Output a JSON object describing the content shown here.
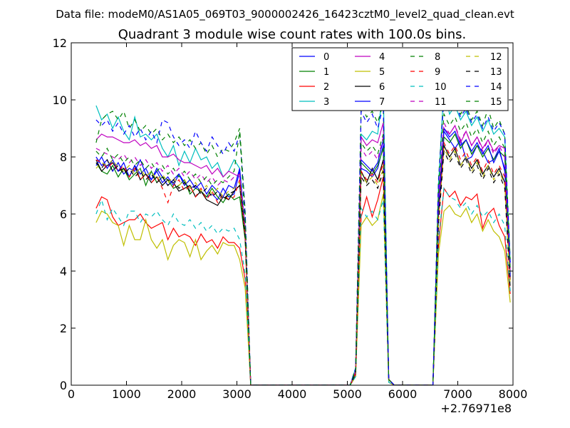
{
  "figure": {
    "suptitle": "Data file: modeM0/AS1A05_069T03_9000002426_16423cztM0_level2_quad_clean.evt"
  },
  "chart_data": {
    "type": "line",
    "title": "Quadrant 3 module wise count rates with 100.0s bins.",
    "xlabel": "",
    "ylabel": "",
    "xlim": [
      0,
      8000
    ],
    "ylim": [
      0,
      12
    ],
    "x_offset_label": "+2.76971e8",
    "x_ticks": [
      0,
      1000,
      2000,
      3000,
      4000,
      5000,
      6000,
      7000,
      8000
    ],
    "y_ticks": [
      0,
      2,
      4,
      6,
      8,
      10,
      12
    ],
    "legend_location": "top-right",
    "legend_columns": 4,
    "x": [
      450,
      550,
      650,
      750,
      850,
      950,
      1050,
      1150,
      1250,
      1350,
      1450,
      1550,
      1650,
      1750,
      1850,
      1950,
      2050,
      2150,
      2250,
      2350,
      2450,
      2550,
      2650,
      2750,
      2850,
      2950,
      3050,
      3150,
      3250,
      3350,
      4550,
      5050,
      5150,
      5250,
      5350,
      5450,
      5550,
      5650,
      5750,
      5850,
      6450,
      6550,
      6650,
      6750,
      6850,
      6950,
      7050,
      7150,
      7250,
      7350,
      7450,
      7550,
      7650,
      7750,
      7850,
      7950
    ],
    "series": [
      {
        "name": "0",
        "color": "#0000ff",
        "dash": "solid",
        "values": [
          8.0,
          7.7,
          7.9,
          7.5,
          7.8,
          7.4,
          7.6,
          7.5,
          7.9,
          7.4,
          7.2,
          7.6,
          7.3,
          7.0,
          7.2,
          7.4,
          7.1,
          6.9,
          7.0,
          6.8,
          6.6,
          6.7,
          6.5,
          6.9,
          6.6,
          6.7,
          7.5,
          5.3,
          0,
          0,
          0,
          0,
          0.4,
          7.6,
          7.5,
          7.3,
          7.6,
          8.4,
          0.2,
          0,
          0,
          0,
          6.0,
          8.9,
          8.6,
          8.3,
          8.6,
          7.9,
          8.0,
          8.4,
          8.2,
          7.8,
          7.9,
          8.3,
          7.5,
          3.9
        ]
      },
      {
        "name": "1",
        "color": "#008000",
        "dash": "solid",
        "values": [
          7.8,
          7.5,
          7.4,
          7.7,
          7.3,
          7.6,
          7.2,
          7.4,
          7.6,
          7.0,
          7.5,
          7.1,
          7.3,
          7.2,
          6.9,
          7.0,
          7.2,
          6.7,
          6.9,
          6.8,
          6.6,
          6.9,
          6.6,
          6.4,
          6.7,
          6.5,
          6.6,
          5.1,
          0,
          0,
          0,
          0,
          0.5,
          7.8,
          7.6,
          7.4,
          7.7,
          8.3,
          0.2,
          0,
          0,
          0,
          6.2,
          8.7,
          8.5,
          8.8,
          8.3,
          8.6,
          8.1,
          8.4,
          8.0,
          8.3,
          7.9,
          8.2,
          8.0,
          3.8
        ]
      },
      {
        "name": "2",
        "color": "#ff0000",
        "dash": "solid",
        "values": [
          6.2,
          6.6,
          6.5,
          5.9,
          5.6,
          5.7,
          5.8,
          5.8,
          6.0,
          5.7,
          5.5,
          5.6,
          5.7,
          5.1,
          5.5,
          5.2,
          5.3,
          5.2,
          4.9,
          5.3,
          5.0,
          5.1,
          4.8,
          5.2,
          5.0,
          5.0,
          4.8,
          3.7,
          0,
          0,
          0,
          0,
          0.3,
          5.9,
          6.6,
          5.9,
          6.5,
          7.3,
          0.1,
          0,
          0,
          0,
          4.9,
          6.9,
          6.6,
          6.8,
          6.3,
          6.6,
          6.5,
          6.7,
          5.5,
          6.0,
          6.2,
          5.6,
          5.2,
          3.2
        ]
      },
      {
        "name": "3",
        "color": "#00bfbf",
        "dash": "solid",
        "values": [
          9.8,
          9.3,
          9.5,
          9.0,
          9.4,
          8.9,
          8.6,
          9.4,
          8.7,
          8.8,
          8.6,
          8.8,
          8.3,
          8.0,
          8.4,
          7.7,
          8.2,
          7.8,
          8.3,
          7.9,
          8.0,
          7.6,
          7.8,
          7.3,
          7.5,
          7.9,
          7.6,
          5.5,
          0,
          0,
          0,
          0,
          0.6,
          8.8,
          8.6,
          8.9,
          8.8,
          10.4,
          0.2,
          0,
          0,
          0,
          7.0,
          10.5,
          9.5,
          9.8,
          9.3,
          9.6,
          9.1,
          9.4,
          8.9,
          9.3,
          8.8,
          9.0,
          8.7,
          4.3
        ]
      },
      {
        "name": "4",
        "color": "#bf00bf",
        "dash": "solid",
        "values": [
          8.6,
          8.8,
          8.7,
          8.7,
          8.6,
          8.5,
          8.5,
          8.6,
          8.4,
          8.5,
          8.3,
          8.4,
          8.0,
          8.0,
          8.1,
          7.9,
          7.8,
          7.8,
          7.7,
          7.6,
          7.7,
          7.4,
          7.6,
          7.3,
          7.5,
          7.4,
          7.3,
          5.4,
          0,
          0,
          0,
          0,
          0.5,
          8.7,
          8.4,
          8.6,
          8.5,
          9.2,
          0.2,
          0,
          0,
          0,
          6.6,
          9.0,
          8.8,
          9.1,
          8.5,
          8.9,
          8.4,
          8.7,
          8.3,
          8.6,
          8.2,
          8.4,
          8.3,
          4.1
        ]
      },
      {
        "name": "5",
        "color": "#bfbf00",
        "dash": "solid",
        "values": [
          5.7,
          6.1,
          6.0,
          5.7,
          5.6,
          4.9,
          5.6,
          5.1,
          5.1,
          5.8,
          5.1,
          4.8,
          5.1,
          4.4,
          4.9,
          5.1,
          5.0,
          4.5,
          5.1,
          4.4,
          4.7,
          4.9,
          4.6,
          5.0,
          4.9,
          4.9,
          4.4,
          3.4,
          0,
          0,
          0,
          0,
          0.3,
          5.6,
          5.9,
          5.6,
          5.8,
          6.7,
          0.1,
          0,
          0,
          0,
          4.6,
          6.1,
          6.3,
          6.0,
          5.9,
          6.2,
          5.7,
          6.0,
          5.4,
          5.8,
          5.4,
          5.2,
          4.7,
          2.9
        ]
      },
      {
        "name": "6",
        "color": "#000000",
        "dash": "solid",
        "values": [
          7.9,
          7.5,
          7.7,
          7.8,
          7.5,
          7.6,
          7.3,
          7.7,
          7.2,
          7.4,
          7.1,
          7.3,
          7.0,
          7.2,
          7.1,
          6.8,
          6.9,
          7.0,
          6.6,
          6.8,
          6.5,
          6.4,
          6.3,
          6.6,
          6.5,
          6.8,
          7.0,
          5.2,
          0,
          0,
          0,
          0,
          0.4,
          7.5,
          7.1,
          7.6,
          7.2,
          7.9,
          0.2,
          0,
          0,
          0,
          5.9,
          8.4,
          8.0,
          8.3,
          7.7,
          8.0,
          7.6,
          7.9,
          7.4,
          7.7,
          7.3,
          7.6,
          7.1,
          3.7
        ]
      },
      {
        "name": "7",
        "color": "#0000ff",
        "dash": "solid",
        "values": [
          7.7,
          8.0,
          7.6,
          7.9,
          7.5,
          7.8,
          7.3,
          7.7,
          7.4,
          7.6,
          7.2,
          7.5,
          7.1,
          7.3,
          7.0,
          7.4,
          7.0,
          7.2,
          6.9,
          7.1,
          6.7,
          7.0,
          6.8,
          6.6,
          7.0,
          6.9,
          7.6,
          5.4,
          0,
          0,
          0,
          0,
          0.4,
          7.9,
          7.7,
          7.5,
          7.8,
          8.6,
          0.2,
          0,
          0,
          0,
          6.1,
          9.0,
          8.7,
          8.9,
          8.4,
          8.6,
          8.2,
          8.5,
          8.1,
          8.4,
          7.8,
          8.2,
          7.6,
          3.8
        ]
      },
      {
        "name": "8",
        "color": "#008000",
        "dash": "dashed",
        "values": [
          8.5,
          9.3,
          9.5,
          9.6,
          9.3,
          9.6,
          9.0,
          9.3,
          8.9,
          9.1,
          8.8,
          9.0,
          8.6,
          8.8,
          8.5,
          8.7,
          8.4,
          8.6,
          8.3,
          8.5,
          8.1,
          8.4,
          8.0,
          8.3,
          8.2,
          8.5,
          9.0,
          6.1,
          0,
          0,
          0,
          0,
          0.6,
          9.8,
          9.4,
          9.6,
          9.2,
          9.9,
          0.2,
          0,
          0,
          0,
          7.2,
          10.2,
          9.8,
          10.0,
          9.5,
          9.8,
          9.3,
          9.6,
          9.1,
          9.7,
          9.0,
          9.3,
          8.8,
          4.4
        ]
      },
      {
        "name": "9",
        "color": "#ff0000",
        "dash": "dashed",
        "values": [
          7.9,
          7.8,
          7.6,
          7.8,
          7.5,
          7.7,
          7.3,
          7.6,
          7.2,
          7.4,
          7.1,
          7.3,
          6.9,
          6.4,
          7.0,
          7.2,
          6.8,
          7.0,
          6.6,
          6.9,
          6.5,
          6.8,
          6.4,
          6.7,
          6.5,
          6.6,
          7.2,
          5.2,
          0,
          0,
          0,
          0,
          0.4,
          7.5,
          7.2,
          7.4,
          7.1,
          7.8,
          0.2,
          0,
          0,
          0,
          5.8,
          8.5,
          8.1,
          8.4,
          7.9,
          8.2,
          7.7,
          8.0,
          7.5,
          7.9,
          7.4,
          7.7,
          7.3,
          3.6
        ]
      },
      {
        "name": "10",
        "color": "#00bfbf",
        "dash": "dashed",
        "values": [
          6.0,
          6.5,
          5.8,
          6.2,
          5.9,
          5.6,
          6.1,
          6.1,
          5.7,
          6.0,
          5.9,
          6.1,
          5.8,
          5.6,
          6.0,
          5.7,
          5.6,
          5.8,
          5.5,
          5.7,
          5.4,
          5.6,
          5.3,
          5.5,
          5.4,
          5.5,
          5.1,
          3.9,
          0,
          0,
          0,
          0,
          0.3,
          6.2,
          5.9,
          6.1,
          5.8,
          6.5,
          0.1,
          0,
          0,
          0,
          5.1,
          6.9,
          6.6,
          6.5,
          6.2,
          6.4,
          6.0,
          6.3,
          5.9,
          6.1,
          5.7,
          6.0,
          5.6,
          3.3
        ]
      },
      {
        "name": "11",
        "color": "#bf00bf",
        "dash": "dashed",
        "values": [
          8.3,
          8.2,
          8.1,
          8.0,
          7.9,
          8.1,
          7.8,
          8.0,
          7.7,
          7.9,
          7.6,
          7.8,
          7.5,
          7.7,
          7.4,
          7.6,
          7.3,
          7.5,
          7.2,
          7.4,
          7.1,
          7.3,
          7.0,
          7.2,
          7.1,
          7.3,
          7.4,
          5.5,
          0,
          0,
          0,
          0,
          0.5,
          8.3,
          8.0,
          8.2,
          7.9,
          8.7,
          0.2,
          0,
          0,
          0,
          6.5,
          9.2,
          8.8,
          9.1,
          8.6,
          8.9,
          8.4,
          8.7,
          8.2,
          8.6,
          8.1,
          8.4,
          8.0,
          4.0
        ]
      },
      {
        "name": "12",
        "color": "#bfbf00",
        "dash": "dashed",
        "values": [
          7.6,
          7.8,
          7.7,
          7.9,
          7.6,
          7.5,
          7.7,
          7.4,
          7.6,
          7.3,
          7.5,
          7.2,
          7.4,
          7.1,
          7.3,
          7.0,
          7.2,
          6.9,
          7.1,
          6.8,
          7.0,
          6.7,
          6.9,
          6.6,
          6.8,
          6.9,
          7.1,
          5.3,
          0,
          0,
          0,
          0,
          0.4,
          7.4,
          7.1,
          7.3,
          7.0,
          7.6,
          0.2,
          0,
          0,
          0,
          5.7,
          8.3,
          7.9,
          8.2,
          7.7,
          8.0,
          7.5,
          7.8,
          7.3,
          7.7,
          7.2,
          7.5,
          7.0,
          3.5
        ]
      },
      {
        "name": "13",
        "color": "#000000",
        "dash": "dashed",
        "values": [
          7.8,
          7.6,
          7.9,
          7.5,
          7.7,
          7.4,
          7.6,
          7.3,
          7.5,
          7.2,
          7.4,
          7.1,
          7.3,
          7.0,
          7.2,
          6.9,
          7.1,
          6.8,
          7.0,
          6.7,
          6.9,
          6.6,
          6.8,
          6.5,
          6.7,
          6.8,
          7.0,
          5.2,
          0,
          0,
          0,
          0,
          0.4,
          7.3,
          7.0,
          7.2,
          6.9,
          7.5,
          0.2,
          0,
          0,
          0,
          5.6,
          8.2,
          7.8,
          8.1,
          7.6,
          7.9,
          7.4,
          7.7,
          7.2,
          7.6,
          7.1,
          7.4,
          6.9,
          3.4
        ]
      },
      {
        "name": "14",
        "color": "#0000ff",
        "dash": "dashed",
        "values": [
          9.3,
          9.1,
          9.3,
          8.9,
          9.2,
          8.8,
          9.1,
          8.7,
          9.0,
          8.6,
          8.9,
          8.5,
          9.3,
          9.2,
          8.7,
          8.4,
          8.6,
          8.3,
          8.9,
          8.5,
          8.2,
          8.7,
          8.4,
          8.1,
          8.5,
          8.2,
          8.8,
          6.0,
          0,
          0,
          0,
          0,
          0.6,
          9.6,
          9.2,
          9.5,
          9.0,
          9.8,
          0.2,
          0,
          0,
          0,
          7.1,
          10.1,
          9.6,
          9.9,
          9.4,
          9.7,
          9.2,
          9.5,
          9.0,
          9.4,
          8.9,
          9.2,
          8.8,
          4.3
        ]
      },
      {
        "name": "15",
        "color": "#008000",
        "dash": "dashed",
        "values": [
          8.2,
          8.0,
          8.3,
          7.9,
          8.1,
          7.8,
          8.0,
          7.7,
          7.9,
          7.6,
          7.8,
          7.5,
          7.7,
          7.4,
          7.6,
          7.3,
          7.5,
          7.2,
          7.4,
          7.1,
          7.3,
          7.0,
          7.2,
          7.1,
          7.3,
          7.5,
          8.9,
          5.6,
          0,
          0,
          0,
          0,
          0.5,
          8.5,
          8.2,
          8.4,
          8.1,
          8.8,
          0.2,
          0,
          0,
          0,
          6.7,
          9.5,
          9.1,
          9.4,
          8.9,
          9.2,
          8.7,
          9.0,
          8.5,
          8.9,
          8.4,
          8.7,
          8.3,
          4.1
        ]
      }
    ]
  }
}
